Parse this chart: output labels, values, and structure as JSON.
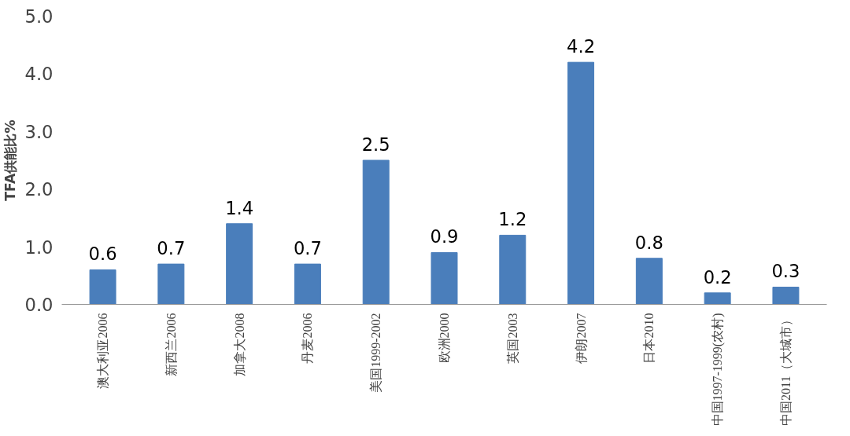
{
  "chart_data": {
    "type": "bar",
    "ylabel": "TFA供能比%",
    "categories": [
      "澳大利亚2006",
      "新西兰2006",
      "加拿大2008",
      "丹麦2006",
      "美国1999-2002",
      "欧洲2000",
      "英国2003",
      "伊朗2007",
      "日本2010",
      "中国1997-1999(农村)",
      "中国2011（大城市）"
    ],
    "values": [
      0.6,
      0.7,
      1.4,
      0.7,
      2.5,
      0.9,
      1.2,
      4.2,
      0.8,
      0.2,
      0.3
    ],
    "color": "#4a7ebb",
    "data_labels": true,
    "grid": false,
    "ylim": [
      0,
      5
    ],
    "yticks": [
      {
        "value": 0,
        "label": "0.0"
      },
      {
        "value": 1,
        "label": "1.0"
      },
      {
        "value": 2,
        "label": "2.0"
      },
      {
        "value": 3,
        "label": "3.0"
      },
      {
        "value": 4,
        "label": "4.0"
      },
      {
        "value": 5,
        "label": "5.0"
      }
    ]
  }
}
